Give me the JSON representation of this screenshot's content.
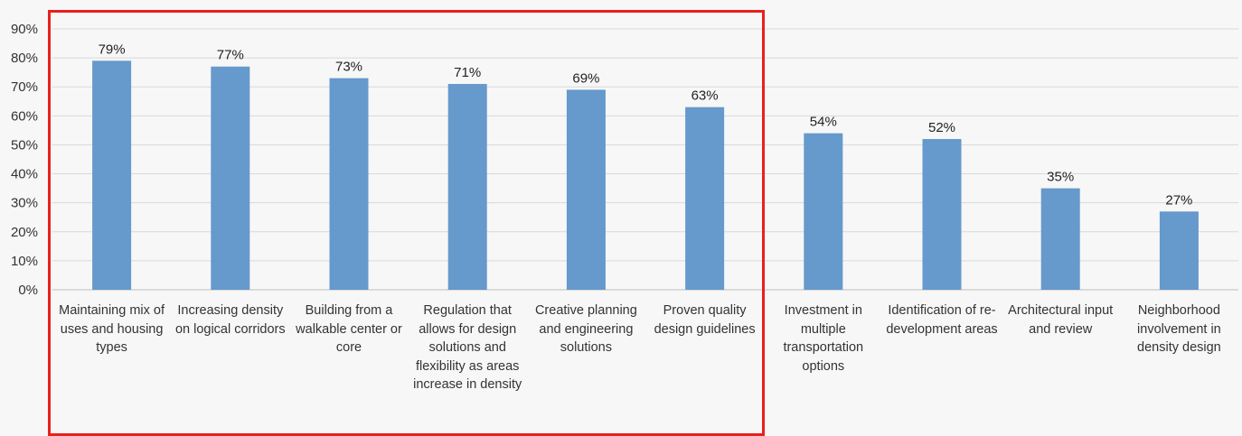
{
  "chart_data": {
    "type": "bar",
    "categories": [
      "Maintaining mix of uses and housing types",
      "Increasing density on logical corridors",
      "Building from a walkable center or core",
      "Regulation that allows for design solutions and flexibility as areas increase in density",
      "Creative planning and engineering solutions",
      "Proven quality design guidelines",
      "Investment in multiple transportation options",
      "Identification of re-development areas",
      "Architectural input and review",
      "Neighborhood involvement in density design"
    ],
    "values": [
      79,
      77,
      73,
      71,
      69,
      63,
      54,
      52,
      35,
      27
    ],
    "data_labels": [
      "79%",
      "77%",
      "73%",
      "71%",
      "69%",
      "63%",
      "54%",
      "52%",
      "35%",
      "27%"
    ],
    "yticks": [
      "0%",
      "10%",
      "20%",
      "30%",
      "40%",
      "50%",
      "60%",
      "70%",
      "80%",
      "90%"
    ],
    "ylim": [
      0,
      90
    ],
    "grid": true,
    "bar_color": "#6699cc",
    "highlight_color": "#e8201c",
    "highlighted_categories": 6,
    "title": "",
    "xlabel": "",
    "ylabel": ""
  }
}
